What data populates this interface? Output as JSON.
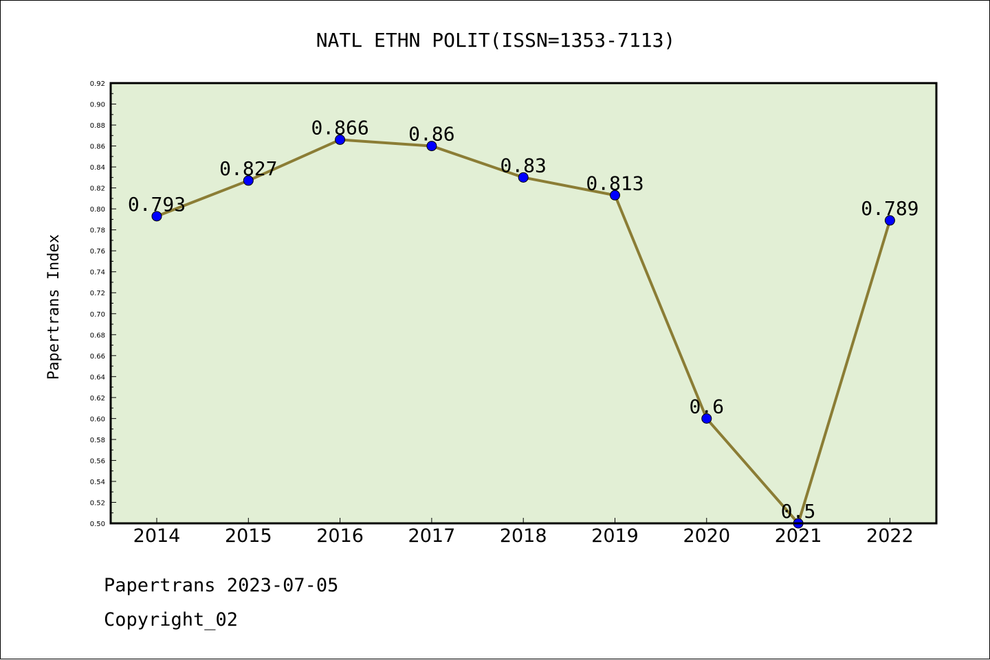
{
  "chart_data": {
    "type": "line",
    "title": "NATL ETHN POLIT(ISSN=1353-7113)",
    "xlabel": "",
    "ylabel": "Papertrans Index",
    "categories": [
      "2014",
      "2015",
      "2016",
      "2017",
      "2018",
      "2019",
      "2020",
      "2021",
      "2022"
    ],
    "series": [
      {
        "values": [
          0.793,
          0.827,
          0.866,
          0.86,
          0.83,
          0.813,
          0.6,
          0.5,
          0.789
        ],
        "labels": [
          "0.793",
          "0.827",
          "0.866",
          "0.86",
          "0.83",
          "0.813",
          "0.6",
          "0.5",
          "0.789"
        ],
        "line_color": "#8B7D35",
        "marker_color": "#0000FF"
      }
    ],
    "ylim": [
      0.5,
      0.92
    ],
    "yticks": [
      "0.50",
      "0.52",
      "0.54",
      "0.56",
      "0.58",
      "0.60",
      "0.62",
      "0.64",
      "0.66",
      "0.68",
      "0.70",
      "0.72",
      "0.74",
      "0.76",
      "0.78",
      "0.80",
      "0.82",
      "0.84",
      "0.86",
      "0.88",
      "0.90",
      "0.92"
    ],
    "plot_background": "#E2EFD5",
    "grid": false,
    "legend": "none"
  },
  "footer": {
    "line1": "Papertrans 2023-07-05",
    "line2": "Copyright_02"
  }
}
